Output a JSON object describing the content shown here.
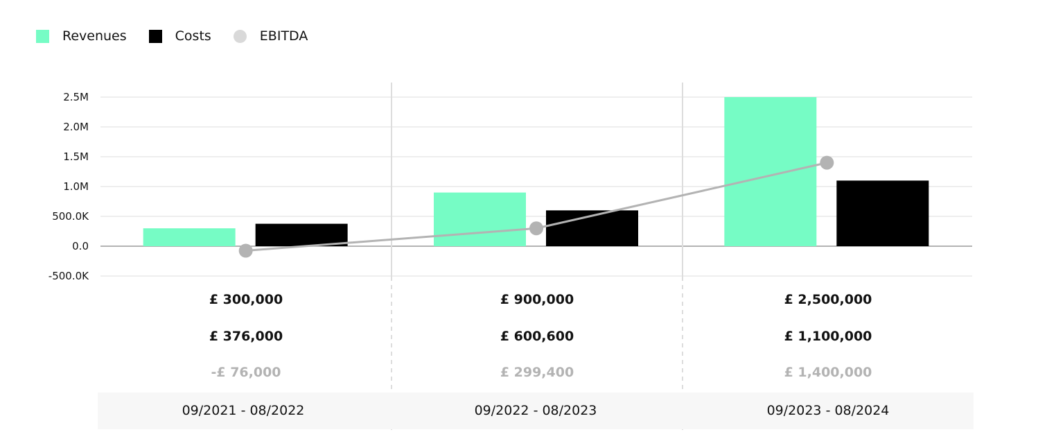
{
  "legend": [
    {
      "label": "Revenues",
      "color": "#76fcc5",
      "shape": "square"
    },
    {
      "label": "Costs",
      "color": "#000000",
      "shape": "square"
    },
    {
      "label": "EBITDA",
      "color": "#d9d9d9",
      "shape": "circle"
    }
  ],
  "chart_data": {
    "type": "bar",
    "categories": [
      "09/2021 - 08/2022",
      "09/2022 - 08/2023",
      "09/2023 - 08/2024"
    ],
    "series": [
      {
        "name": "Revenues",
        "type": "bar",
        "color": "#76fcc5",
        "values": [
          300000,
          900000,
          2500000
        ]
      },
      {
        "name": "Costs",
        "type": "bar",
        "color": "#000000",
        "values": [
          376000,
          600600,
          1100000
        ]
      },
      {
        "name": "EBITDA",
        "type": "line",
        "color": "#b3b3b3",
        "marker_color": "#b3b3b3",
        "values": [
          -76000,
          299400,
          1400000
        ]
      }
    ],
    "yticks": [
      -500000,
      0,
      500000,
      1000000,
      1500000,
      2000000,
      2500000
    ],
    "ytick_labels": [
      "-500.0K",
      "0.0",
      "500.0K",
      "1.0M",
      "1.5M",
      "2.0M",
      "2.5M"
    ],
    "ylim": [
      -500000,
      2750000
    ],
    "grid": true,
    "legend_position": "top-left"
  },
  "values_table": [
    {
      "revenues": "£ 300,000",
      "costs": "£ 376,000",
      "ebitda": "-£ 76,000"
    },
    {
      "revenues": "£ 900,000",
      "costs": "£ 600,600",
      "ebitda": "£ 299,400"
    },
    {
      "revenues": "£ 2,500,000",
      "costs": "£ 1,100,000",
      "ebitda": "£ 1,400,000"
    }
  ]
}
